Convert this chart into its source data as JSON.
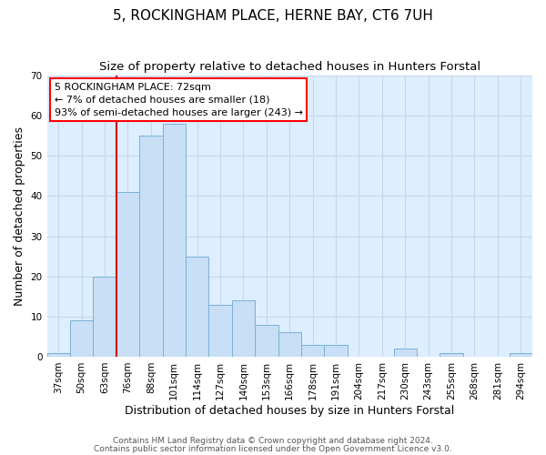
{
  "title": "5, ROCKINGHAM PLACE, HERNE BAY, CT6 7UH",
  "subtitle": "Size of property relative to detached houses in Hunters Forstal",
  "xlabel": "Distribution of detached houses by size in Hunters Forstal",
  "ylabel": "Number of detached properties",
  "bar_labels": [
    "37sqm",
    "50sqm",
    "63sqm",
    "76sqm",
    "88sqm",
    "101sqm",
    "114sqm",
    "127sqm",
    "140sqm",
    "153sqm",
    "166sqm",
    "178sqm",
    "191sqm",
    "204sqm",
    "217sqm",
    "230sqm",
    "243sqm",
    "255sqm",
    "268sqm",
    "281sqm",
    "294sqm"
  ],
  "bar_heights": [
    1,
    9,
    20,
    41,
    55,
    58,
    25,
    13,
    14,
    8,
    6,
    3,
    3,
    0,
    0,
    2,
    0,
    1,
    0,
    0,
    1
  ],
  "bar_color": "#c8dff5",
  "bar_edge_color": "#7ab0d8",
  "vline_color": "#cc0000",
  "ylim": [
    0,
    70
  ],
  "yticks": [
    0,
    10,
    20,
    30,
    40,
    50,
    60,
    70
  ],
  "annotation_line1": "5 ROCKINGHAM PLACE: 72sqm",
  "annotation_line2": "← 7% of detached houses are smaller (18)",
  "annotation_line3": "93% of semi-detached houses are larger (243) →",
  "footer_line1": "Contains HM Land Registry data © Crown copyright and database right 2024.",
  "footer_line2": "Contains public sector information licensed under the Open Government Licence v3.0.",
  "background_color": "#ffffff",
  "axes_bg_color": "#ddeeff",
  "grid_color": "#c5d8ec",
  "title_fontsize": 11,
  "subtitle_fontsize": 9.5,
  "axis_label_fontsize": 9,
  "tick_fontsize": 7.5,
  "annotation_fontsize": 8,
  "footer_fontsize": 6.5,
  "vline_index": 3
}
